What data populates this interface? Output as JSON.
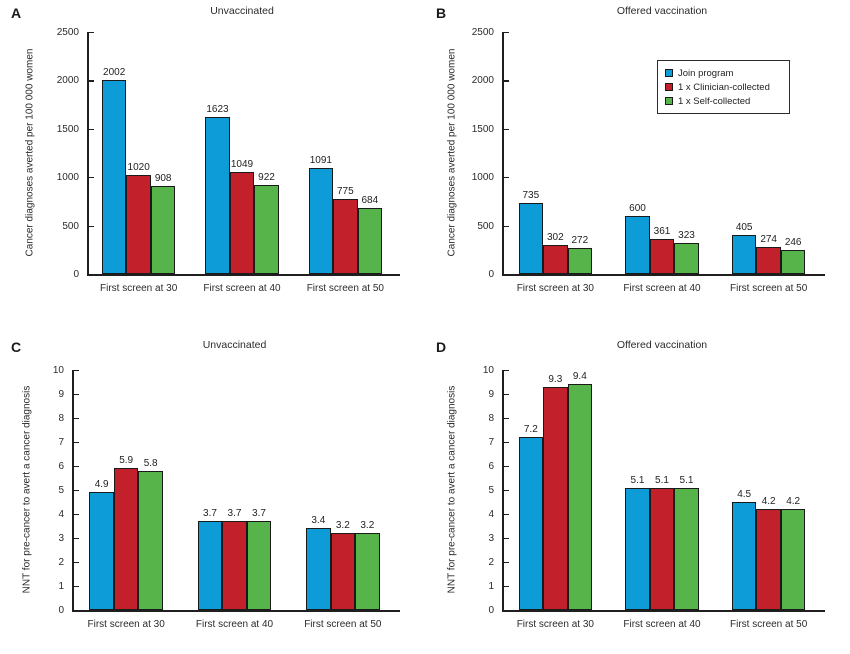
{
  "figure": {
    "background": "#ffffff",
    "axis_color": "#1f1f1f",
    "text_color": "#2b2b2b",
    "categories": [
      "First screen at 30",
      "First screen at 40",
      "First screen at 50"
    ],
    "legend": {
      "items": [
        {
          "label": "Join program",
          "color": "#0e9cd8"
        },
        {
          "label": "1 x Clinician-collected",
          "color": "#c2202a"
        },
        {
          "label": "1 x Self-collected",
          "color": "#57b44a"
        }
      ]
    }
  },
  "chart_data": [
    {
      "panel_label": "A",
      "type": "bar",
      "title": "Unvaccinated",
      "ylabel": "Cancer diagnoses averted per 100 000 women",
      "xlabel": "",
      "ylim": [
        0,
        2500
      ],
      "ytick_step": 500,
      "grid": false,
      "legend_visible": false,
      "categories": [
        "First screen at 30",
        "First screen at 40",
        "First screen at 50"
      ],
      "series": [
        {
          "name": "Join program",
          "color": "#0e9cd8",
          "values": [
            2002,
            1623,
            1091
          ]
        },
        {
          "name": "1 x Clinician-collected",
          "color": "#c2202a",
          "values": [
            1020,
            1049,
            775
          ]
        },
        {
          "name": "1 x Self-collected",
          "color": "#57b44a",
          "values": [
            908,
            922,
            684
          ]
        }
      ]
    },
    {
      "panel_label": "B",
      "type": "bar",
      "title": "Offered vaccination",
      "ylabel": "Cancer diagnoses averted per 100 000 women",
      "xlabel": "",
      "ylim": [
        0,
        2500
      ],
      "ytick_step": 500,
      "grid": false,
      "legend_visible": true,
      "legend_position": "upper right",
      "categories": [
        "First screen at 30",
        "First screen at 40",
        "First screen at 50"
      ],
      "series": [
        {
          "name": "Join program",
          "color": "#0e9cd8",
          "values": [
            735,
            600,
            405
          ]
        },
        {
          "name": "1 x Clinician-collected",
          "color": "#c2202a",
          "values": [
            302,
            361,
            274
          ]
        },
        {
          "name": "1 x Self-collected",
          "color": "#57b44a",
          "values": [
            272,
            323,
            246
          ]
        }
      ]
    },
    {
      "panel_label": "C",
      "type": "bar",
      "title": "Unvaccinated",
      "ylabel": "NNT for pre-cancer to avert a cancer diagnosis",
      "xlabel": "",
      "ylim": [
        0,
        10
      ],
      "ytick_step": 1,
      "grid": false,
      "legend_visible": false,
      "categories": [
        "First screen at 30",
        "First screen at 40",
        "First screen at 50"
      ],
      "series": [
        {
          "name": "Join program",
          "color": "#0e9cd8",
          "values": [
            4.9,
            3.7,
            3.4
          ]
        },
        {
          "name": "1 x Clinician-collected",
          "color": "#c2202a",
          "values": [
            5.9,
            3.7,
            3.2
          ]
        },
        {
          "name": "1 x Self-collected",
          "color": "#57b44a",
          "values": [
            5.8,
            3.7,
            3.2
          ]
        }
      ]
    },
    {
      "panel_label": "D",
      "type": "bar",
      "title": "Offered vaccination",
      "ylabel": "NNT for pre-cancer to avert a cancer diagnosis",
      "xlabel": "",
      "ylim": [
        0,
        10
      ],
      "ytick_step": 1,
      "grid": false,
      "legend_visible": false,
      "categories": [
        "First screen at 30",
        "First screen at 40",
        "First screen at 50"
      ],
      "series": [
        {
          "name": "Join program",
          "color": "#0e9cd8",
          "values": [
            7.2,
            5.1,
            4.5
          ]
        },
        {
          "name": "1 x Clinician-collected",
          "color": "#c2202a",
          "values": [
            9.3,
            5.1,
            4.2
          ]
        },
        {
          "name": "1 x Self-collected",
          "color": "#57b44a",
          "values": [
            9.4,
            5.1,
            4.2
          ]
        }
      ]
    }
  ]
}
